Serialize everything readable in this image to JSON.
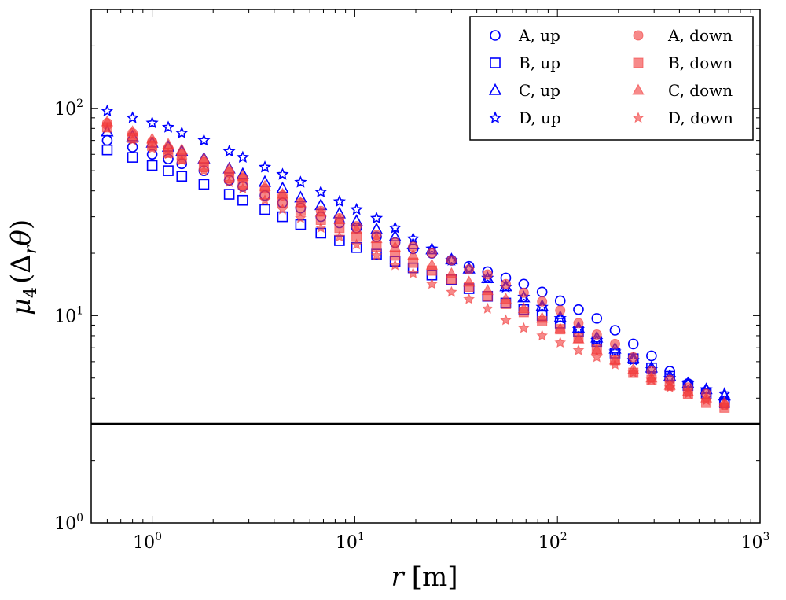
{
  "chart_data": {
    "type": "scatter",
    "title": "",
    "xlabel": {
      "var": "r",
      "unit": "[m]"
    },
    "ylabel": {
      "main": "μ",
      "sub": "4",
      "arg": "(Δ",
      "argsub": "r",
      "argvar": "θ",
      "close": ")"
    },
    "xscale": "log",
    "yscale": "log",
    "xlim": [
      0.5,
      1000
    ],
    "ylim": [
      1,
      300
    ],
    "x_ticks": [
      {
        "base": "10",
        "exp": "0",
        "value": 1
      },
      {
        "base": "10",
        "exp": "1",
        "value": 10
      },
      {
        "base": "10",
        "exp": "2",
        "value": 100
      },
      {
        "base": "10",
        "exp": "3",
        "value": 1000
      }
    ],
    "y_ticks": [
      {
        "base": "10",
        "exp": "0",
        "value": 1
      },
      {
        "base": "10",
        "exp": "1",
        "value": 10
      },
      {
        "base": "10",
        "exp": "2",
        "value": 100
      }
    ],
    "grid": false,
    "legend_position": "top-right",
    "reference_line": {
      "y": 3,
      "color": "#000000"
    },
    "x": [
      0.6,
      0.8,
      1.0,
      1.2,
      1.4,
      1.8,
      2.4,
      2.8,
      3.6,
      4.4,
      5.4,
      6.8,
      8.4,
      10.2,
      12.8,
      15.8,
      19.4,
      24,
      30,
      36.6,
      45.2,
      55.6,
      68.2,
      84,
      103.2,
      127,
      156.4,
      192.4,
      236.8,
      291.2,
      358.4,
      441,
      542.6,
      667.6
    ],
    "series": [
      {
        "name": "A, up",
        "marker": "circle",
        "filled": false,
        "color": "#0000ff",
        "values": [
          70,
          65,
          60,
          57,
          54,
          50,
          45,
          42,
          38,
          35,
          33,
          30,
          28,
          26.5,
          24,
          22.5,
          21,
          20,
          18.5,
          17.3,
          16.3,
          15.2,
          14.2,
          13,
          11.8,
          10.7,
          9.7,
          8.5,
          7.3,
          6.4,
          5.4,
          4.7,
          4.2,
          3.8
        ]
      },
      {
        "name": "B, up",
        "marker": "square",
        "filled": false,
        "color": "#0000ff",
        "values": [
          63,
          58,
          53,
          50,
          47,
          43,
          38.5,
          36,
          32.5,
          30,
          27.5,
          25,
          23,
          21.3,
          19.8,
          18.3,
          17,
          15.7,
          14.9,
          13.5,
          12.4,
          11.5,
          10.7,
          10,
          9.2,
          8.4,
          7.5,
          6.6,
          6.2,
          5.6,
          5.1,
          4.6,
          4.2,
          3.8
        ]
      },
      {
        "name": "C, up",
        "marker": "triangle",
        "filled": false,
        "color": "#0000ff",
        "values": [
          77,
          73,
          68,
          65,
          62,
          57,
          51,
          48,
          44,
          41,
          37,
          34,
          31,
          28.5,
          26,
          24,
          22,
          20.8,
          18.6,
          16.8,
          15.1,
          13.8,
          12.2,
          11.1,
          9.8,
          8.7,
          7.8,
          6.9,
          6.2,
          5.6,
          5.1,
          4.7,
          4.4,
          4.1
        ]
      },
      {
        "name": "D, up",
        "marker": "star",
        "filled": false,
        "color": "#0000ff",
        "values": [
          97,
          90,
          85,
          81,
          76,
          70,
          62,
          58,
          52,
          48,
          44,
          39.5,
          35.5,
          32.5,
          29.5,
          26.5,
          23.5,
          21,
          18.5,
          16.8,
          15.2,
          13.7,
          12.3,
          11,
          9.7,
          8.6,
          7.6,
          6.7,
          6.1,
          5.5,
          5,
          4.7,
          4.4,
          4.2
        ]
      },
      {
        "name": "A, down",
        "marker": "circle",
        "filled": true,
        "color": "#f23b3b",
        "values": [
          85,
          76,
          69,
          64,
          60,
          55,
          49,
          46,
          41,
          38,
          35,
          32,
          29.5,
          27,
          24.5,
          22.5,
          21.5,
          20,
          18.5,
          16.7,
          15.8,
          14.2,
          12.9,
          11.7,
          10.6,
          9.2,
          8.1,
          7.3,
          6.3,
          5.4,
          4.9,
          4.5,
          4.2,
          3.7
        ]
      },
      {
        "name": "B, down",
        "marker": "square",
        "filled": true,
        "color": "#f23b3b",
        "values": [
          81,
          72,
          66,
          61,
          57,
          52,
          46,
          43,
          38.5,
          35,
          32,
          29,
          26.5,
          24,
          21.5,
          19.5,
          18,
          16.5,
          15,
          13.8,
          12.4,
          11.4,
          10.4,
          9.4,
          8.6,
          7.8,
          6.9,
          6.1,
          5.3,
          4.9,
          4.6,
          4.2,
          3.8,
          3.6
        ]
      },
      {
        "name": "C, down",
        "marker": "triangle",
        "filled": true,
        "color": "#f23b3b",
        "values": [
          86,
          77,
          71,
          67,
          63,
          57,
          51,
          47,
          42,
          38.5,
          35,
          31.5,
          29,
          26,
          23.5,
          21.3,
          19.5,
          17.5,
          15.9,
          14.5,
          13.2,
          12,
          10.8,
          9.7,
          8.6,
          7.7,
          6.8,
          6.1,
          5.5,
          5,
          4.6,
          4.3,
          4,
          3.8
        ]
      },
      {
        "name": "D, down",
        "marker": "star",
        "filled": true,
        "color": "#f23b3b",
        "values": [
          80,
          70,
          64,
          60,
          56,
          50,
          44,
          41,
          36,
          32.5,
          29.5,
          26.5,
          24,
          22,
          19.5,
          17.5,
          16,
          14.2,
          13,
          12,
          10.8,
          9.5,
          8.7,
          8,
          7.4,
          6.8,
          6.3,
          5.8,
          5.3,
          4.9,
          4.5,
          4.2,
          3.9,
          3.7
        ]
      }
    ]
  }
}
